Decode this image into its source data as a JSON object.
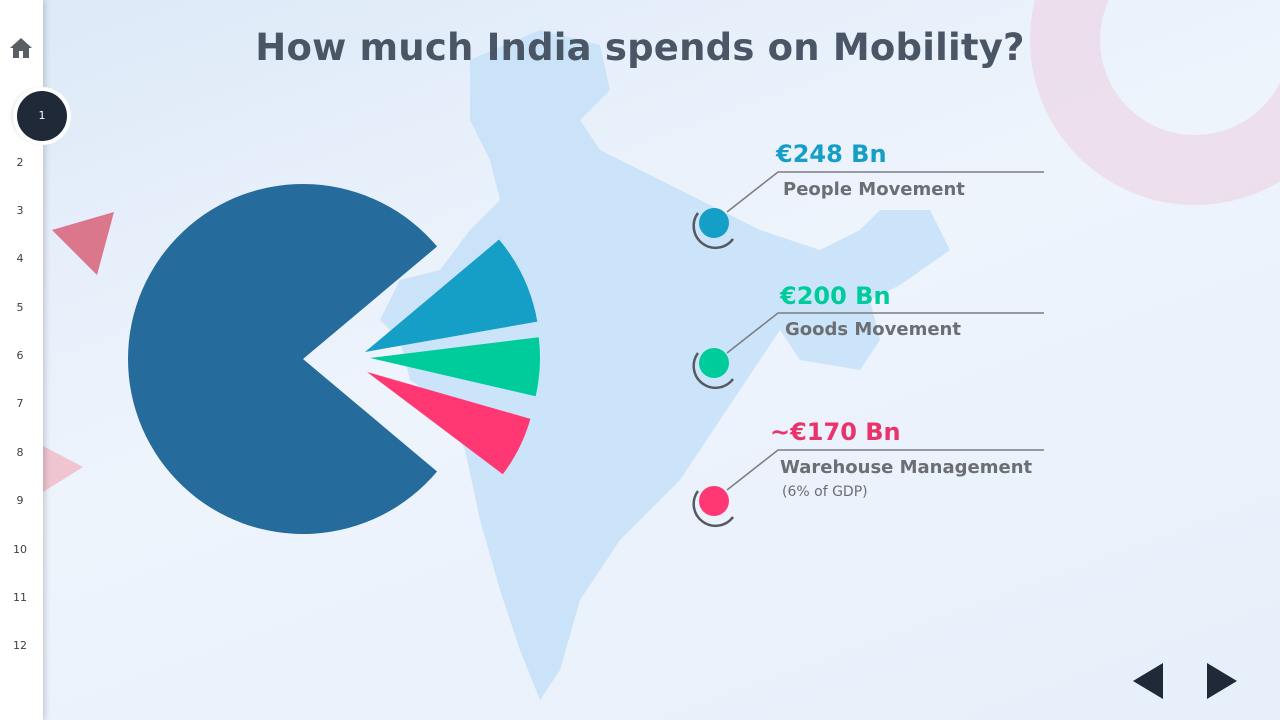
{
  "title": "How much India spends on Mobility?",
  "sidebar": {
    "active_slide": "1",
    "slides": [
      "1",
      "2",
      "3",
      "4",
      "5",
      "6",
      "7",
      "8",
      "9",
      "10",
      "11",
      "12"
    ]
  },
  "colors": {
    "main_slice": "#256b9b",
    "people": "#159ec6",
    "goods": "#00cc9b",
    "warehouse": "#ff3873",
    "title": "#4a5565",
    "map": "#c3dff7"
  },
  "chart_data": {
    "type": "pie",
    "exploded": true,
    "slices": [
      {
        "label": "People Movement",
        "value_label": "€248 Bn",
        "value": 248,
        "color": "#159ec6"
      },
      {
        "label": "Goods Movement",
        "value_label": "€200 Bn",
        "value": 200,
        "color": "#00cc9b"
      },
      {
        "label": "Warehouse Management",
        "value_label": "~€170 Bn",
        "value": 170,
        "note": "(6% of GDP)",
        "color": "#ff3873"
      }
    ]
  },
  "icons": {
    "home": "home-icon",
    "prev": "prev-arrow-icon",
    "next": "next-arrow-icon"
  }
}
